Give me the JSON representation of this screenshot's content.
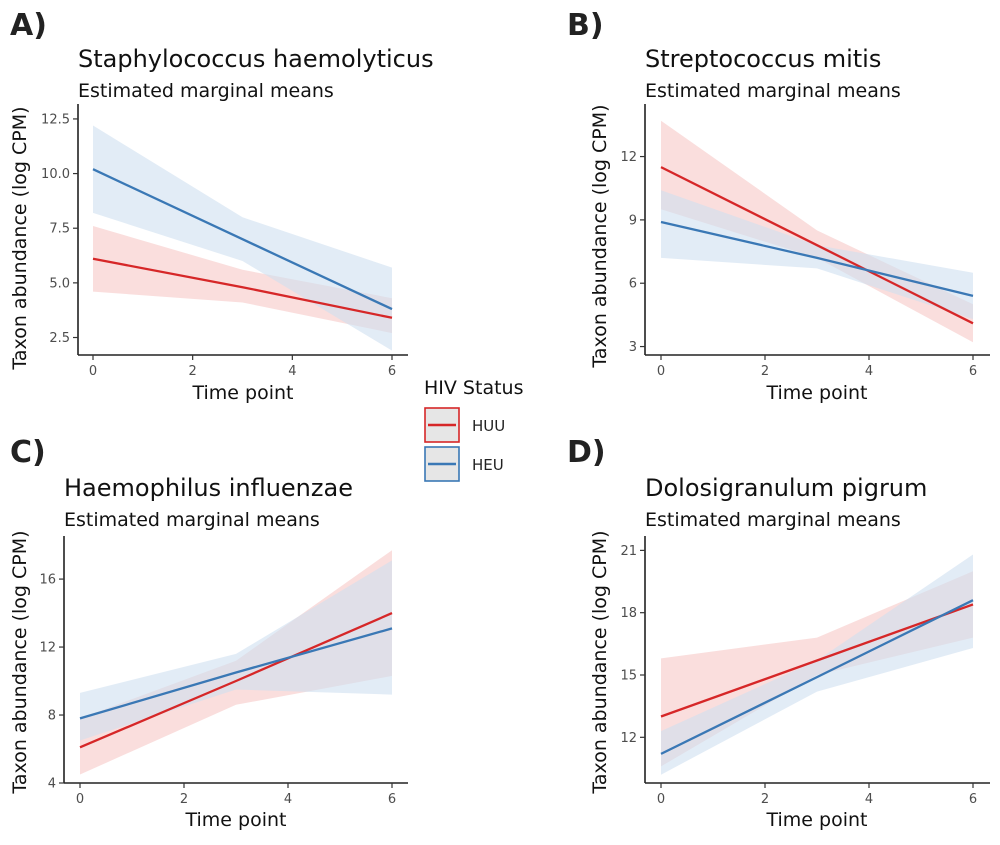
{
  "legend": {
    "title": "HIV Status",
    "items": [
      {
        "label": "HUU",
        "color": "#d62728",
        "fill": "#f7c8c7"
      },
      {
        "label": "HEU",
        "color": "#3a78b5",
        "fill": "#cfe0f0"
      }
    ]
  },
  "chart_data": [
    {
      "type": "line",
      "panel": "A)",
      "title": "Staphylococcus haemolyticus",
      "subtitle": "Estimated marginal means",
      "xlabel": "Time point",
      "ylabel": "Taxon abundance (log CPM)",
      "xlim": [
        0,
        6
      ],
      "ylim": [
        1.7,
        13.0
      ],
      "xticks": [
        0,
        2,
        4,
        6
      ],
      "yticks": [
        2.5,
        5.0,
        7.5,
        10.0,
        12.5
      ],
      "ytick_labels": [
        "2.5",
        "5.0",
        "7.5",
        "10.0",
        "12.5"
      ],
      "series": [
        {
          "name": "HUU",
          "x": [
            0,
            3,
            6
          ],
          "y": [
            6.1,
            4.8,
            3.4
          ],
          "lower": [
            4.6,
            4.1,
            2.7
          ],
          "upper": [
            7.6,
            5.6,
            4.3
          ]
        },
        {
          "name": "HEU",
          "x": [
            0,
            3,
            6
          ],
          "y": [
            10.2,
            7.0,
            3.8
          ],
          "lower": [
            8.2,
            6.0,
            1.9
          ],
          "upper": [
            12.2,
            8.0,
            5.7
          ]
        }
      ]
    },
    {
      "type": "line",
      "panel": "B)",
      "title": "Streptococcus mitis",
      "subtitle": "Estimated marginal means",
      "xlabel": "Time point",
      "ylabel": "Taxon abundance (log CPM)",
      "xlim": [
        0,
        6
      ],
      "ylim": [
        2.6,
        14.3
      ],
      "xticks": [
        0,
        2,
        4,
        6
      ],
      "yticks": [
        3,
        6,
        9,
        12
      ],
      "ytick_labels": [
        "3",
        "6",
        "9",
        "12"
      ],
      "series": [
        {
          "name": "HUU",
          "x": [
            0,
            3,
            6
          ],
          "y": [
            11.5,
            7.8,
            4.1
          ],
          "lower": [
            9.5,
            7.2,
            3.2
          ],
          "upper": [
            13.7,
            8.5,
            5.0
          ]
        },
        {
          "name": "HEU",
          "x": [
            0,
            3,
            6
          ],
          "y": [
            8.9,
            7.2,
            5.4
          ],
          "lower": [
            7.2,
            6.7,
            4.3
          ],
          "upper": [
            10.4,
            7.8,
            6.5
          ]
        }
      ]
    },
    {
      "type": "line",
      "panel": "C)",
      "title": "Haemophilus influenzae",
      "subtitle": "Estimated marginal means",
      "xlabel": "Time point",
      "ylabel": "Taxon abundance (log CPM)",
      "xlim": [
        0,
        6
      ],
      "ylim": [
        4,
        18.3
      ],
      "xticks": [
        0,
        2,
        4,
        6
      ],
      "yticks": [
        4,
        8,
        12,
        16
      ],
      "ytick_labels": [
        "4",
        "8",
        "12",
        "16"
      ],
      "series": [
        {
          "name": "HUU",
          "x": [
            0,
            3,
            6
          ],
          "y": [
            6.1,
            10.0,
            14.0
          ],
          "lower": [
            4.5,
            8.6,
            10.3
          ],
          "upper": [
            7.8,
            11.2,
            17.7
          ]
        },
        {
          "name": "HEU",
          "x": [
            0,
            3,
            6
          ],
          "y": [
            7.8,
            10.5,
            13.1
          ],
          "lower": [
            6.5,
            9.5,
            9.2
          ],
          "upper": [
            9.3,
            11.6,
            17.1
          ]
        }
      ]
    },
    {
      "type": "line",
      "panel": "D)",
      "title": "Dolosigranulum pigrum",
      "subtitle": "Estimated marginal means",
      "xlabel": "Time point",
      "ylabel": "Taxon abundance (log CPM)",
      "xlim": [
        0,
        6
      ],
      "ylim": [
        9.8,
        21.5
      ],
      "xticks": [
        0,
        2,
        4,
        6
      ],
      "yticks": [
        12,
        15,
        18,
        21
      ],
      "ytick_labels": [
        "12",
        "15",
        "18",
        "21"
      ],
      "series": [
        {
          "name": "HUU",
          "x": [
            0,
            3,
            6
          ],
          "y": [
            13.0,
            15.7,
            18.4
          ],
          "lower": [
            10.6,
            15.0,
            16.8
          ],
          "upper": [
            15.8,
            16.8,
            20.0
          ]
        },
        {
          "name": "HEU",
          "x": [
            0,
            3,
            6
          ],
          "y": [
            11.2,
            14.9,
            18.6
          ],
          "lower": [
            10.2,
            14.2,
            16.3
          ],
          "upper": [
            12.3,
            15.7,
            20.8
          ]
        }
      ]
    }
  ]
}
